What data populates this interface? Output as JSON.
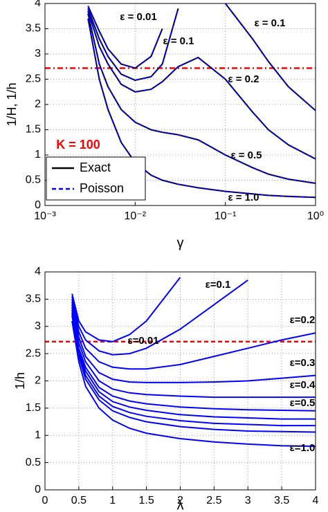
{
  "chart_data": [
    {
      "type": "line",
      "xlabel": "γ",
      "ylabel": "1/H, 1/h",
      "xscale": "log",
      "xlim": [
        0.001,
        1
      ],
      "xticks": [
        {
          "value": 0.001,
          "label": "10⁻³"
        },
        {
          "value": 0.01,
          "label": "10⁻²"
        },
        {
          "value": 0.1,
          "label": "10⁻¹"
        },
        {
          "value": 1,
          "label": "10⁰"
        }
      ],
      "ylim": [
        0,
        4
      ],
      "yticks": [
        0,
        0.5,
        1,
        1.5,
        2,
        2.5,
        3,
        3.5,
        4
      ],
      "grid": true,
      "legend": "lower left",
      "hline": {
        "value": 2.72,
        "color": "#ff0000",
        "style": "dashdot"
      },
      "x": [
        0.003,
        0.004,
        0.005,
        0.007,
        0.01,
        0.015,
        0.02,
        0.03,
        0.05,
        0.1,
        0.2,
        0.3,
        0.5,
        1.0
      ],
      "series": [
        {
          "name": "Exact",
          "color": "#000000",
          "style": "solid",
          "values": [
            [
              3.95,
              3.45,
              3.1,
              2.8,
              2.72,
              2.95,
              3.5,
              null,
              null,
              null,
              null,
              null,
              null,
              null
            ],
            [
              3.9,
              3.3,
              2.95,
              2.6,
              2.48,
              2.55,
              2.8,
              3.9,
              null,
              null,
              null,
              null,
              null,
              null
            ],
            [
              3.85,
              3.15,
              2.8,
              2.4,
              2.25,
              2.3,
              2.45,
              2.75,
              2.93,
              2.5,
              1.85,
              1.5,
              1.2,
              0.92
            ],
            [
              null,
              null,
              null,
              null,
              null,
              null,
              null,
              null,
              null,
              4.0,
              3.3,
              2.85,
              2.35,
              1.88
            ],
            [
              3.8,
              2.8,
              2.35,
              1.9,
              1.65,
              1.5,
              1.45,
              1.4,
              1.3,
              1.0,
              0.75,
              0.62,
              0.52,
              0.44
            ],
            [
              3.7,
              2.5,
              1.9,
              1.25,
              0.85,
              0.6,
              0.5,
              0.42,
              0.35,
              0.28,
              0.23,
              0.2,
              0.18,
              0.16
            ]
          ]
        },
        {
          "name": "Poisson",
          "color": "#0000ff",
          "style": "dashed",
          "values": [
            [
              3.95,
              3.45,
              3.1,
              2.8,
              2.72,
              2.95,
              3.5,
              null,
              null,
              null,
              null,
              null,
              null,
              null
            ],
            [
              3.9,
              3.3,
              2.95,
              2.6,
              2.48,
              2.55,
              2.8,
              3.9,
              null,
              null,
              null,
              null,
              null,
              null
            ],
            [
              3.85,
              3.15,
              2.8,
              2.4,
              2.25,
              2.3,
              2.45,
              2.75,
              2.93,
              2.5,
              1.85,
              1.5,
              1.2,
              0.92
            ],
            [
              null,
              null,
              null,
              null,
              null,
              null,
              null,
              null,
              null,
              4.0,
              3.3,
              2.85,
              2.35,
              1.88
            ],
            [
              3.8,
              2.8,
              2.35,
              1.9,
              1.65,
              1.5,
              1.45,
              1.4,
              1.3,
              1.0,
              0.75,
              0.62,
              0.52,
              0.44
            ],
            [
              3.7,
              2.5,
              1.9,
              1.25,
              0.85,
              0.6,
              0.5,
              0.42,
              0.35,
              0.28,
              0.23,
              0.2,
              0.18,
              0.16
            ]
          ]
        }
      ],
      "annotations": [
        {
          "text": "ε = 0.01"
        },
        {
          "text": "ε = 0.1"
        },
        {
          "text": "ε = 0.1"
        },
        {
          "text": "ε = 0.2"
        },
        {
          "text": "ε = 0.5"
        },
        {
          "text": "ε = 1.0"
        },
        {
          "text": "K = 100",
          "color": "#ff0000"
        }
      ]
    },
    {
      "type": "line",
      "xlabel": "λ",
      "ylabel": "1/h",
      "xscale": "linear",
      "xlim": [
        0,
        4
      ],
      "xticks": [
        0,
        0.5,
        1,
        1.5,
        2,
        2.5,
        3,
        3.5,
        4
      ],
      "ylim": [
        0,
        4
      ],
      "yticks": [
        0,
        0.5,
        1,
        1.5,
        2,
        2.5,
        3,
        3.5,
        4
      ],
      "grid": true,
      "hline": {
        "value": 2.72,
        "color": "#ff0000",
        "style": "dashed"
      },
      "x": [
        0.4,
        0.5,
        0.6,
        0.8,
        1.0,
        1.25,
        1.5,
        2.0,
        2.5,
        3.0,
        3.5,
        4.0
      ],
      "series": [
        {
          "color": "#0000ff",
          "style": "solid",
          "values": [
            [
              3.6,
              3.1,
              2.9,
              2.75,
              2.72,
              2.85,
              3.1,
              3.9,
              null,
              null,
              null,
              null
            ],
            [
              3.55,
              3.0,
              2.75,
              2.55,
              2.48,
              2.5,
              2.6,
              2.95,
              3.4,
              3.85,
              null,
              null
            ],
            [
              3.5,
              2.9,
              2.6,
              2.35,
              2.25,
              2.22,
              2.22,
              2.3,
              2.45,
              2.6,
              2.75,
              2.88
            ],
            [
              3.45,
              2.8,
              2.45,
              2.15,
              2.03,
              1.98,
              1.97,
              1.97,
              1.98,
              2.0,
              2.05,
              2.1
            ],
            [
              3.4,
              2.7,
              2.35,
              2.0,
              1.85,
              1.78,
              1.75,
              1.72,
              1.7,
              1.7,
              1.7,
              1.7
            ],
            [
              3.35,
              2.6,
              2.25,
              1.88,
              1.72,
              1.63,
              1.58,
              1.52,
              1.49,
              1.47,
              1.46,
              1.45
            ],
            [
              3.3,
              2.55,
              2.18,
              1.8,
              1.62,
              1.52,
              1.46,
              1.38,
              1.34,
              1.32,
              1.3,
              1.3
            ],
            [
              3.25,
              2.5,
              2.1,
              1.72,
              1.53,
              1.42,
              1.35,
              1.27,
              1.22,
              1.2,
              1.18,
              1.18
            ],
            [
              3.2,
              2.45,
              2.03,
              1.65,
              1.45,
              1.33,
              1.25,
              1.16,
              1.11,
              1.08,
              1.07,
              1.06
            ],
            [
              3.1,
              2.35,
              1.9,
              1.5,
              1.28,
              1.13,
              1.04,
              0.94,
              0.88,
              0.84,
              0.81,
              0.8
            ]
          ]
        }
      ],
      "annotations": [
        {
          "text": "ε=0.01"
        },
        {
          "text": "ε=0.1"
        },
        {
          "text": "ε=0.2"
        },
        {
          "text": "ε=0.3"
        },
        {
          "text": "ε=0.4"
        },
        {
          "text": "ε=0.5"
        },
        {
          "text": "ε=1.0"
        }
      ]
    }
  ]
}
